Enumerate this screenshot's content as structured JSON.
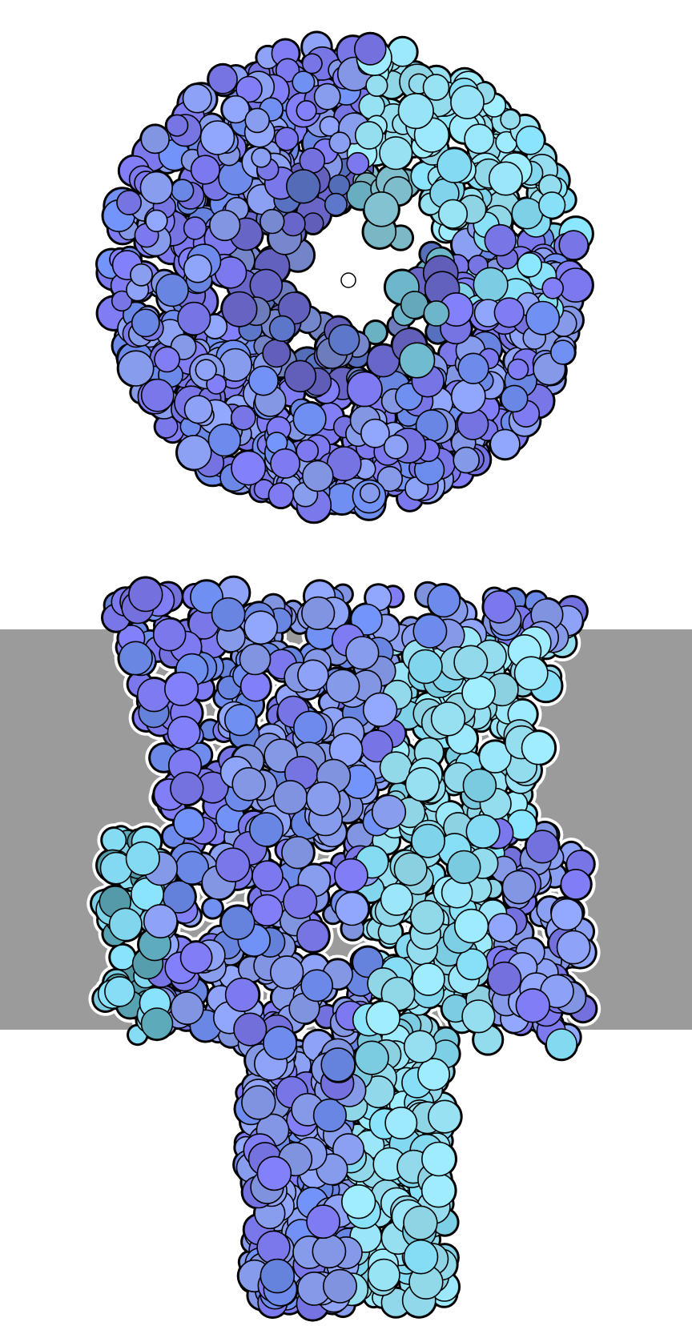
{
  "scene": {
    "background_color": "#ffffff",
    "membrane_color": "#9b9b9b",
    "outline_color": "#000000",
    "halo_color": "#ffffff",
    "palette": {
      "violet": "#7e7bf2",
      "periwinkle": "#8da2f6",
      "blue": "#6f8ff2",
      "sky": "#86def6",
      "cyan": "#9ae6f8",
      "teal": "#5aa5b5"
    }
  }
}
